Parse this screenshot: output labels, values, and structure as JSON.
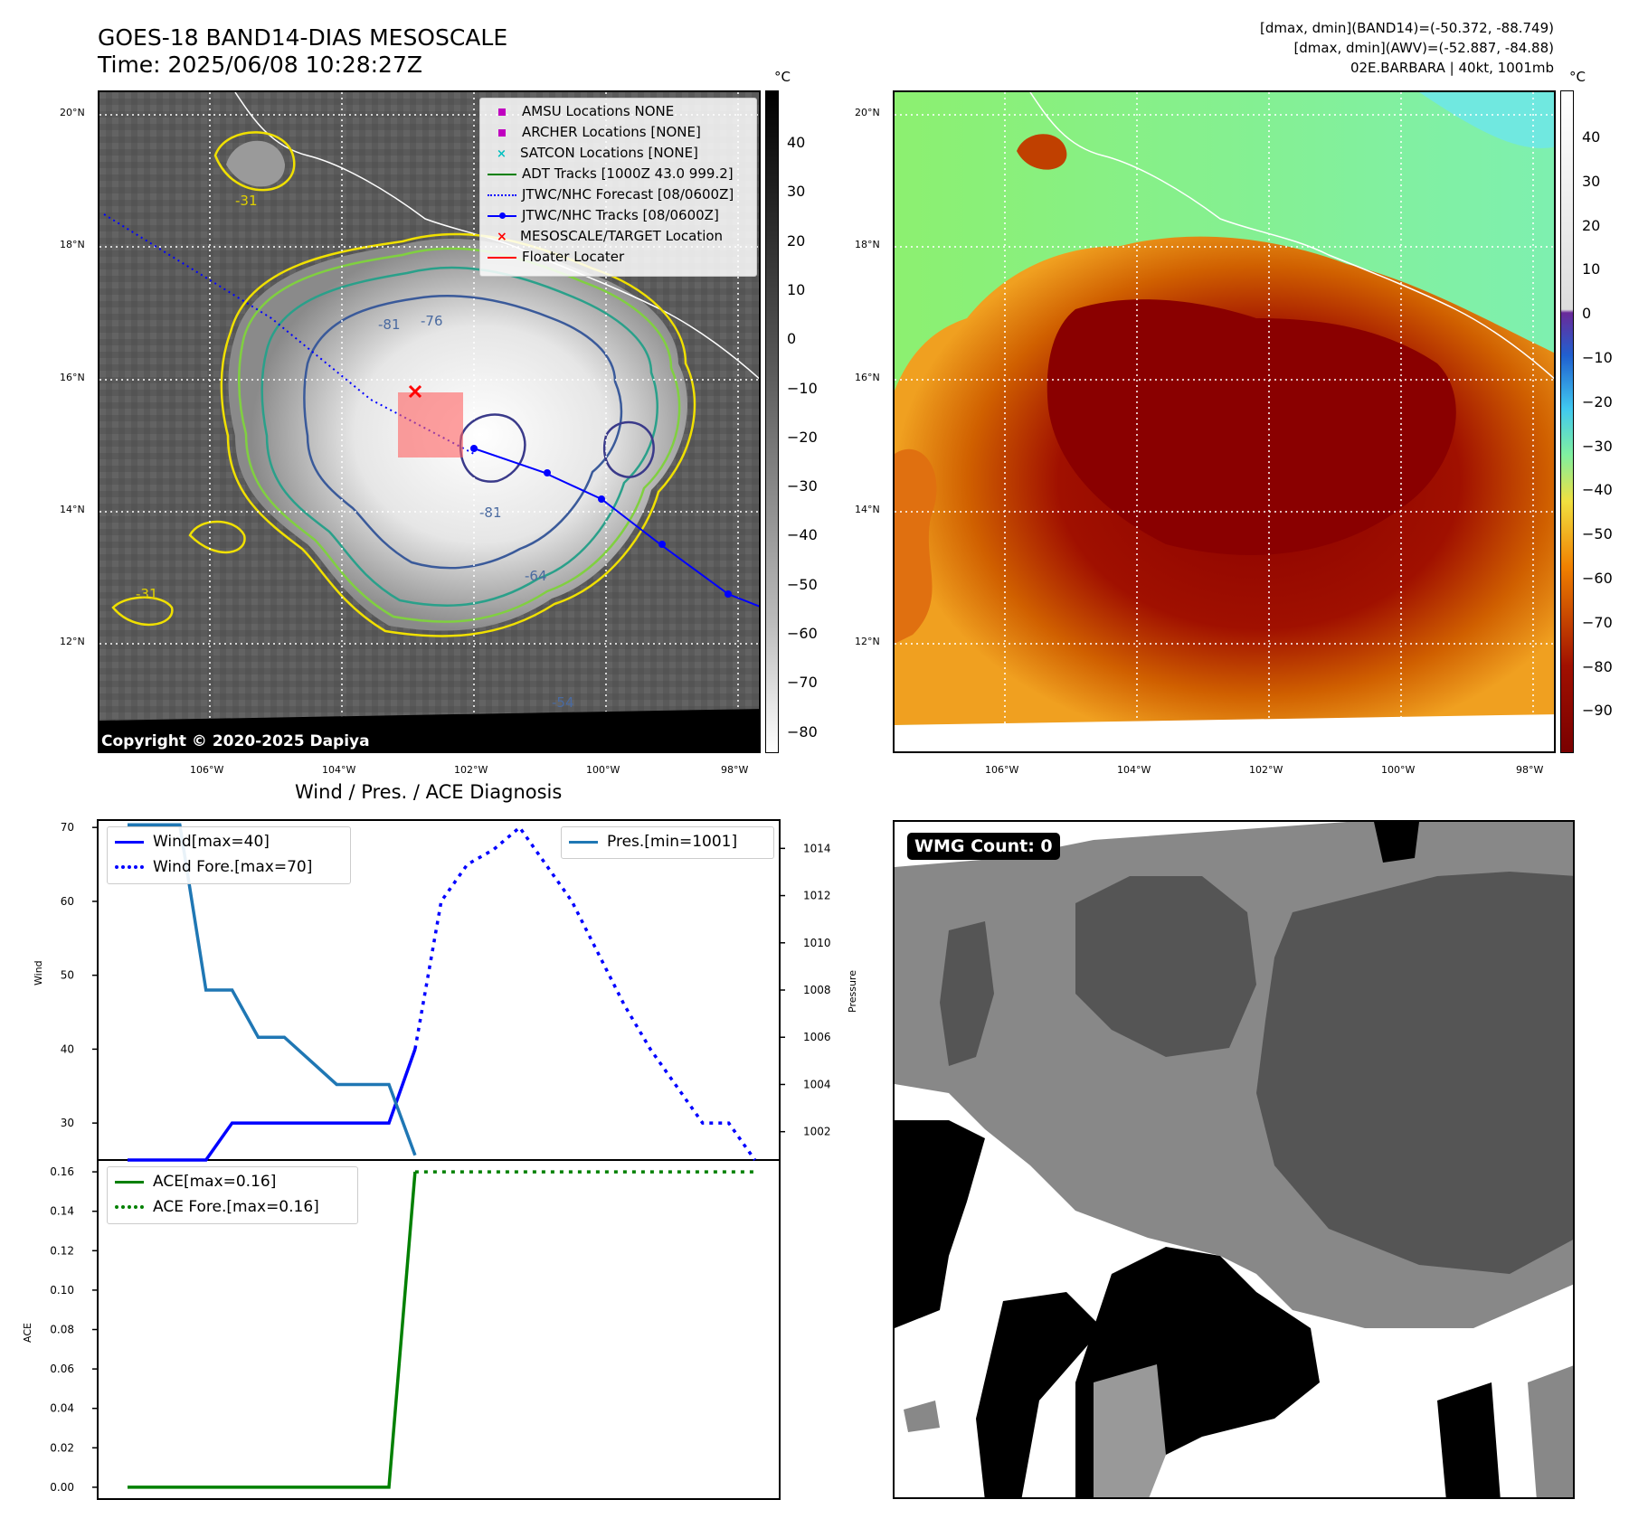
{
  "header": {
    "title_line1": "GOES-18 BAND14-DIAS MESOSCALE",
    "title_line2": "Time: 2025/06/08 10:28:27Z",
    "info_line1": "[dmax, dmin](BAND14)=(-50.372, -88.749)",
    "info_line2": "[dmax, dmin](AWV)=(-52.887, -84.88)",
    "info_line3": "02E.BARBARA | 40kt, 1001mb"
  },
  "map_axes": {
    "lat_labels": [
      "20°N",
      "18°N",
      "16°N",
      "14°N",
      "12°N"
    ],
    "lon_labels": [
      "106°W",
      "104°W",
      "102°W",
      "100°W",
      "98°W"
    ]
  },
  "ir_panel": {
    "copyright": "Copyright © 2020-2025 Dapiya",
    "contour_labels": [
      "-31",
      "-54",
      "-64",
      "-76",
      "-81"
    ],
    "legend": [
      {
        "label": "AMSU Locations NONE",
        "color": "#c000c0",
        "marker": "square"
      },
      {
        "label": "ARCHER Locations [NONE]",
        "color": "#c000c0",
        "marker": "square"
      },
      {
        "label": "SATCON Locations [NONE]",
        "color": "#00c0c0",
        "marker": "x"
      },
      {
        "label": "ADT Tracks [1000Z 43.0 999.2]",
        "color": "#008000",
        "marker": "line"
      },
      {
        "label": "JTWC/NHC Forecast [08/0600Z]",
        "color": "#0000ff",
        "marker": "dotted"
      },
      {
        "label": "JTWC/NHC Tracks [08/0600Z]",
        "color": "#0000ff",
        "marker": "line-dot"
      },
      {
        "label": "MESOSCALE/TARGET Location",
        "color": "#ff0000",
        "marker": "x"
      },
      {
        "label": "Floater Locater",
        "color": "#ff0000",
        "marker": "line"
      }
    ],
    "colorbar_unit": "°C",
    "colorbar_ticks": [
      "40",
      "30",
      "20",
      "10",
      "0",
      "−10",
      "−20",
      "−30",
      "−40",
      "−50",
      "−60",
      "−70",
      "−80"
    ]
  },
  "awv_panel": {
    "colorbar_unit": "°C",
    "colorbar_ticks": [
      "40",
      "30",
      "20",
      "10",
      "0",
      "−10",
      "−20",
      "−30",
      "−40",
      "−50",
      "−60",
      "−70",
      "−80",
      "−90"
    ]
  },
  "diag_panel": {
    "title": "Wind / Pres. / ACE Diagnosis",
    "wind_ylabel": "Wind",
    "pres_ylabel": "Pressure",
    "ace_ylabel": "ACE",
    "wind_ticks": [
      "70",
      "60",
      "50",
      "40",
      "30"
    ],
    "pres_ticks": [
      "1014",
      "1012",
      "1010",
      "1008",
      "1006",
      "1004",
      "1002"
    ],
    "ace_ticks": [
      "0.16",
      "0.14",
      "0.12",
      "0.10",
      "0.08",
      "0.06",
      "0.04",
      "0.02",
      "0.00"
    ],
    "legend_wind": "Wind[max=40]",
    "legend_wind_fore": "Wind Fore.[max=70]",
    "legend_pres": "Pres.[min=1001]",
    "legend_ace": "ACE[max=0.16]",
    "legend_ace_fore": "ACE Fore.[max=0.16]"
  },
  "wmg_panel": {
    "badge": "WMG Count: 0"
  },
  "colors": {
    "wind": "#0000ff",
    "pressure": "#1f77b4",
    "ace": "#008000"
  },
  "chart_data": [
    {
      "type": "line",
      "x": [
        0,
        1,
        2,
        3,
        4,
        5,
        6,
        7,
        8,
        9,
        10,
        11,
        12,
        13,
        14,
        15,
        16,
        17,
        18,
        19,
        20,
        21,
        22,
        23,
        24
      ],
      "series": [
        {
          "name": "Wind[max=40]",
          "axis": "left",
          "style": "solid",
          "x": [
            0,
            1,
            2,
            3,
            4,
            5,
            6,
            7,
            8,
            9,
            10,
            11
          ],
          "values": [
            25,
            25,
            25,
            25,
            30,
            30,
            30,
            30,
            30,
            30,
            30,
            40
          ]
        },
        {
          "name": "Wind Fore.[max=70]",
          "axis": "left",
          "style": "dotted",
          "x": [
            11,
            12,
            13,
            14,
            15,
            16,
            17,
            18,
            19,
            20,
            21,
            22,
            23,
            24
          ],
          "values": [
            40,
            60,
            65,
            67,
            70,
            65,
            60,
            53,
            46,
            40,
            35,
            30,
            30,
            25
          ]
        },
        {
          "name": "Pres.[min=1001]",
          "axis": "right",
          "style": "solid",
          "x": [
            0,
            1,
            2,
            3,
            4,
            5,
            6,
            7,
            8,
            9,
            10,
            11
          ],
          "values": [
            1015,
            1015,
            1015,
            1008,
            1008,
            1006,
            1006,
            1005,
            1004,
            1004,
            1004,
            1001
          ]
        }
      ],
      "ylabel": "Wind",
      "ylim": [
        25,
        71
      ],
      "y2label": "Pressure",
      "y2lim": [
        1000.8,
        1015.2
      ],
      "yticks": [
        30,
        40,
        50,
        60,
        70
      ],
      "y2ticks": [
        1002,
        1004,
        1006,
        1008,
        1010,
        1012,
        1014
      ]
    },
    {
      "type": "line",
      "series": [
        {
          "name": "ACE[max=0.16]",
          "style": "solid",
          "x": [
            0,
            1,
            2,
            3,
            4,
            5,
            6,
            7,
            8,
            9,
            10,
            11
          ],
          "values": [
            0,
            0,
            0,
            0,
            0,
            0,
            0,
            0,
            0,
            0,
            0,
            0.16
          ]
        },
        {
          "name": "ACE Fore.[max=0.16]",
          "style": "dotted",
          "x": [
            11,
            12,
            13,
            14,
            15,
            16,
            17,
            18,
            19,
            20,
            21,
            22,
            23,
            24
          ],
          "values": [
            0.16,
            0.16,
            0.16,
            0.16,
            0.16,
            0.16,
            0.16,
            0.16,
            0.16,
            0.16,
            0.16,
            0.16,
            0.16,
            0.16
          ]
        }
      ],
      "ylabel": "ACE",
      "ylim": [
        -0.006,
        0.166
      ],
      "yticks": [
        0,
        0.02,
        0.04,
        0.06,
        0.08,
        0.1,
        0.12,
        0.14,
        0.16
      ]
    }
  ]
}
